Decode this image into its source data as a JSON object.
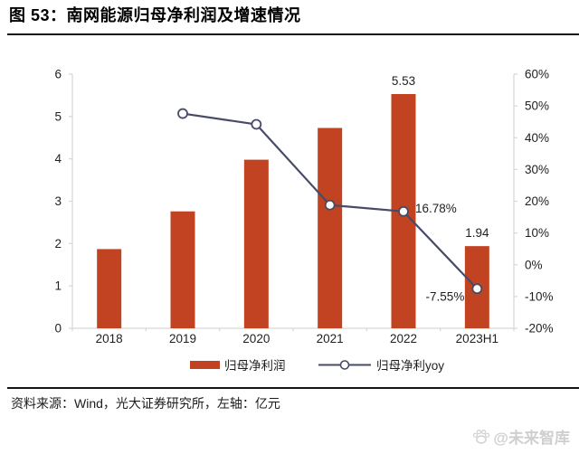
{
  "header": {
    "title": "图 53：南网能源归母净利润及增速情况"
  },
  "footer": {
    "source": "资料来源：Wind，光大证券研究所，左轴：亿元",
    "watermark": "@未来智库"
  },
  "colors": {
    "bar": "#C24321",
    "line": "#484B66",
    "axis": "#D6D6D6",
    "text": "#1F1F1F",
    "watermark": "#CFCFCF"
  },
  "chart_data": {
    "type": "bar",
    "subtype": "bar+line combo, dual axis",
    "categories": [
      "2018",
      "2019",
      "2020",
      "2021",
      "2022",
      "2023H1"
    ],
    "series": [
      {
        "name": "归母净利润",
        "type": "bar",
        "axis": "left",
        "values": [
          1.87,
          2.76,
          3.98,
          4.73,
          5.53,
          1.94
        ]
      },
      {
        "name": "归母净利yoy",
        "type": "line",
        "axis": "right",
        "values": [
          null,
          47.6,
          44.2,
          18.8,
          16.78,
          -7.55
        ]
      }
    ],
    "left_axis": {
      "min": 0,
      "max": 6,
      "step": 1,
      "unit": "亿元"
    },
    "right_axis": {
      "min": -20,
      "max": 60,
      "step": 10,
      "suffix": "%"
    },
    "bar_labels": [
      {
        "index": 4,
        "text": "5.53"
      },
      {
        "index": 5,
        "text": "1.94"
      }
    ],
    "line_labels": [
      {
        "index": 4,
        "text": "16.78%",
        "side": "right"
      },
      {
        "index": 5,
        "text": "-7.55%",
        "side": "left"
      }
    ],
    "legend": [
      {
        "label": "归母净利润",
        "type": "bar"
      },
      {
        "label": "归母净利yoy",
        "type": "line"
      }
    ],
    "grid": false,
    "legend_position": "bottom-center"
  }
}
